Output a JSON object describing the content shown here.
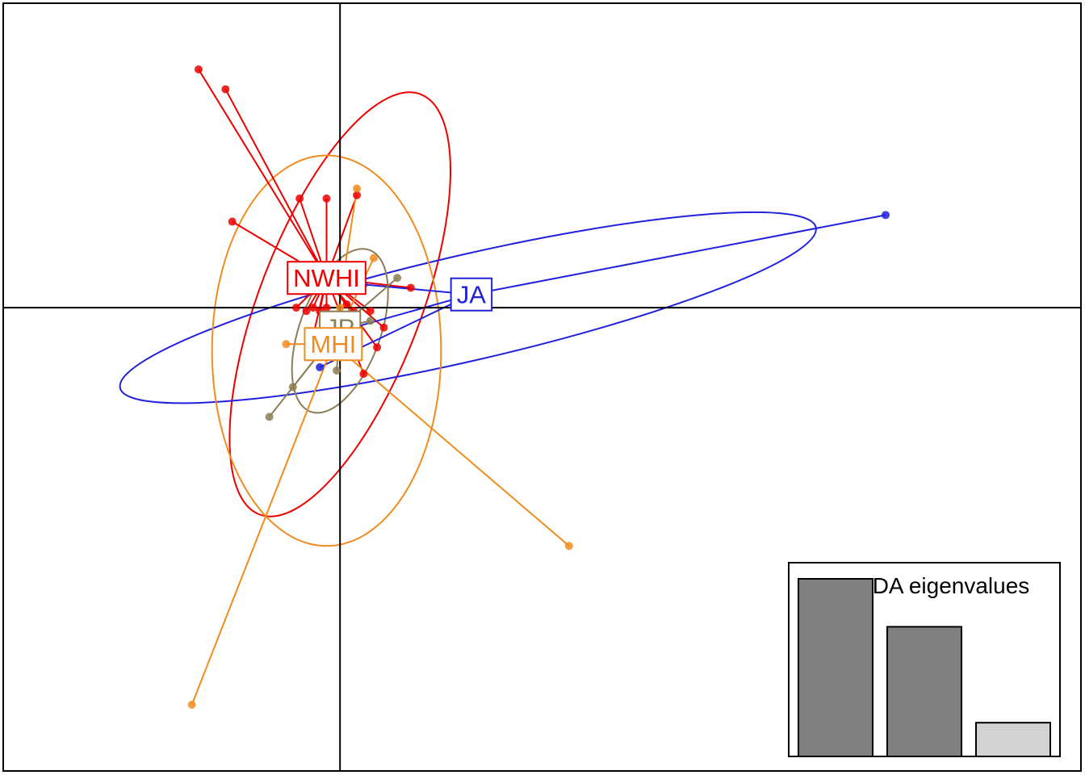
{
  "chart_data": {
    "type": "scatter",
    "subtype": "DAPC scatter with group centroids, 95% ellipses and star segments",
    "title": "",
    "xlabel": "",
    "ylabel": "",
    "xlim": [
      -5,
      11
    ],
    "ylim": [
      -7,
      4.6
    ],
    "axes_lines_at": [
      0,
      0
    ],
    "grid": false,
    "series": [
      {
        "name": "NWHI",
        "color": "#ee0000",
        "centroid": [
          -0.2,
          0.45
        ],
        "ellipse": {
          "cx": 0.0,
          "cy": 0.05,
          "rx": 1.2,
          "ry": 3.4,
          "angle": 21
        },
        "points": [
          [
            -2.1,
            3.6
          ],
          [
            -1.7,
            3.3
          ],
          [
            -0.6,
            1.65
          ],
          [
            -0.2,
            1.65
          ],
          [
            0.25,
            1.7
          ],
          [
            -1.6,
            1.3
          ],
          [
            1.05,
            0.3
          ],
          [
            -0.65,
            0.0
          ],
          [
            -0.5,
            -0.05
          ],
          [
            -0.4,
            0.0
          ],
          [
            -0.3,
            -0.05
          ],
          [
            -0.2,
            0.0
          ],
          [
            0.1,
            0.05
          ],
          [
            0.2,
            -0.05
          ],
          [
            0.45,
            -0.05
          ],
          [
            0.65,
            -0.3
          ],
          [
            0.55,
            -0.6
          ],
          [
            -0.45,
            -0.65
          ],
          [
            0.35,
            -1.0
          ]
        ]
      },
      {
        "name": "JA",
        "color": "#2020dd",
        "centroid": [
          1.95,
          0.2
        ],
        "ellipse": {
          "cx": 1.9,
          "cy": 0.0,
          "rx": 5.3,
          "ry": 0.8,
          "angle": -13
        },
        "points": [
          [
            8.1,
            1.4
          ],
          [
            -0.3,
            -0.9
          ],
          [
            0.2,
            -0.3
          ],
          [
            0.35,
            0.35
          ]
        ]
      },
      {
        "name": "JP",
        "color": "#8b7d55",
        "centroid": [
          0.0,
          -0.3
        ],
        "ellipse": {
          "cx": 0.0,
          "cy": -0.35,
          "rx": 0.6,
          "ry": 1.3,
          "angle": 20
        },
        "points": [
          [
            0.85,
            0.45
          ],
          [
            0.45,
            -0.2
          ],
          [
            -0.7,
            -1.2
          ],
          [
            -1.05,
            -1.65
          ],
          [
            -0.05,
            -0.95
          ]
        ]
      },
      {
        "name": "MHI",
        "color": "#f08c1e",
        "centroid": [
          -0.1,
          -0.55
        ],
        "ellipse": {
          "cx": -0.2,
          "cy": -0.65,
          "rx": 1.7,
          "ry": 2.95,
          "angle": 0
        },
        "points": [
          [
            0.25,
            1.8
          ],
          [
            3.4,
            -3.6
          ],
          [
            -2.2,
            -6.0
          ],
          [
            -0.8,
            -0.55
          ],
          [
            0.5,
            0.75
          ],
          [
            0.0,
            0.0
          ]
        ]
      }
    ],
    "inset": {
      "title": "DA eigenvalues",
      "type": "bar",
      "values": [
        100,
        73,
        19
      ],
      "fills": [
        "#808080",
        "#808080",
        "#d3d3d3"
      ]
    }
  }
}
